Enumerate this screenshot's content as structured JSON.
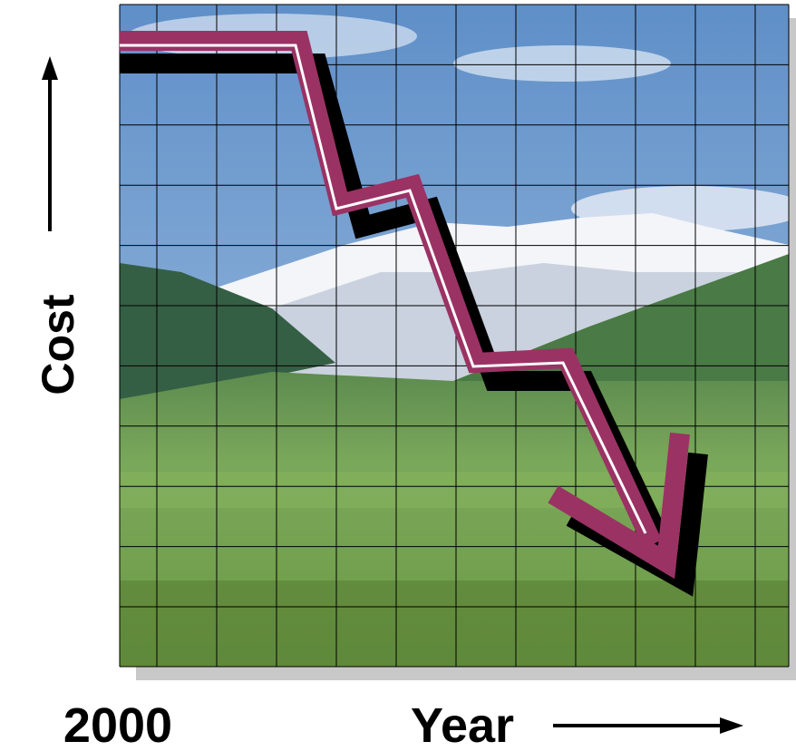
{
  "labels": {
    "y_axis": "Cost",
    "x_start": "2000",
    "x_axis": "Year"
  }
}
